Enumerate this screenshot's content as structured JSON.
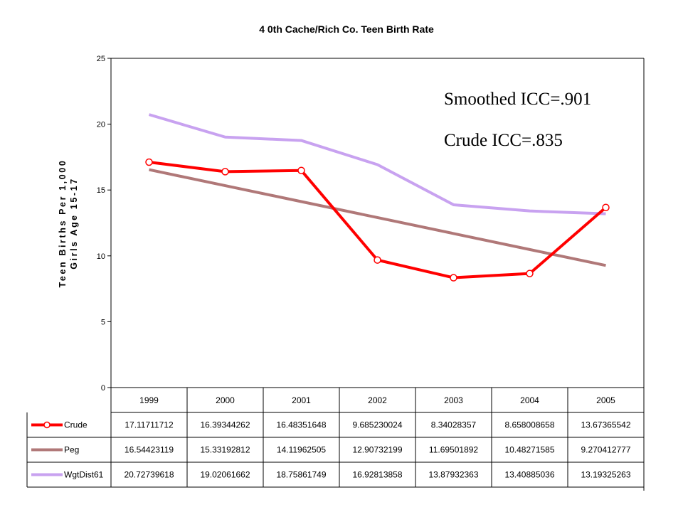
{
  "chart_data": {
    "type": "line",
    "title": "4 0th Cache/Rich Co. Teen Birth Rate",
    "ylabel_line1": "Teen Births Per 1,000",
    "ylabel_line2": "Girls Age 15-17",
    "ylim": [
      0,
      25
    ],
    "yticks": [
      "0",
      "5",
      "10",
      "15",
      "20",
      "25"
    ],
    "categories": [
      "1999",
      "2000",
      "2001",
      "2002",
      "2003",
      "2004",
      "2005"
    ],
    "series": [
      {
        "name": "Crude",
        "color": "#ff0000",
        "marker": "circle",
        "values": [
          17.11711712,
          16.39344262,
          16.48351648,
          9.685230024,
          8.34028357,
          8.658008658,
          13.67365542
        ],
        "labels": [
          "17.11711712",
          "16.39344262",
          "16.48351648",
          "9.685230024",
          "8.34028357",
          "8.658008658",
          "13.67365542"
        ]
      },
      {
        "name": "Peg",
        "color": "#b07878",
        "marker": "none",
        "values": [
          16.54423119,
          15.33192812,
          14.11962505,
          12.90732199,
          11.69501892,
          10.48271585,
          9.270412777
        ],
        "labels": [
          "16.54423119",
          "15.33192812",
          "14.11962505",
          "12.90732199",
          "11.69501892",
          "10.48271585",
          "9.270412777"
        ]
      },
      {
        "name": "WgtDist61",
        "color": "#c8a2f0",
        "marker": "none",
        "values": [
          20.72739618,
          19.02061662,
          18.75861749,
          16.92813858,
          13.87932363,
          13.40885036,
          13.19325263
        ],
        "labels": [
          "20.72739618",
          "19.02061662",
          "18.75861749",
          "16.92813858",
          "13.87932363",
          "13.40885036",
          "13.19325263"
        ]
      }
    ],
    "grid": false,
    "legend": "data-table-below",
    "annotations": [
      "Smoothed ICC=.901",
      "Crude ICC=.835"
    ]
  }
}
